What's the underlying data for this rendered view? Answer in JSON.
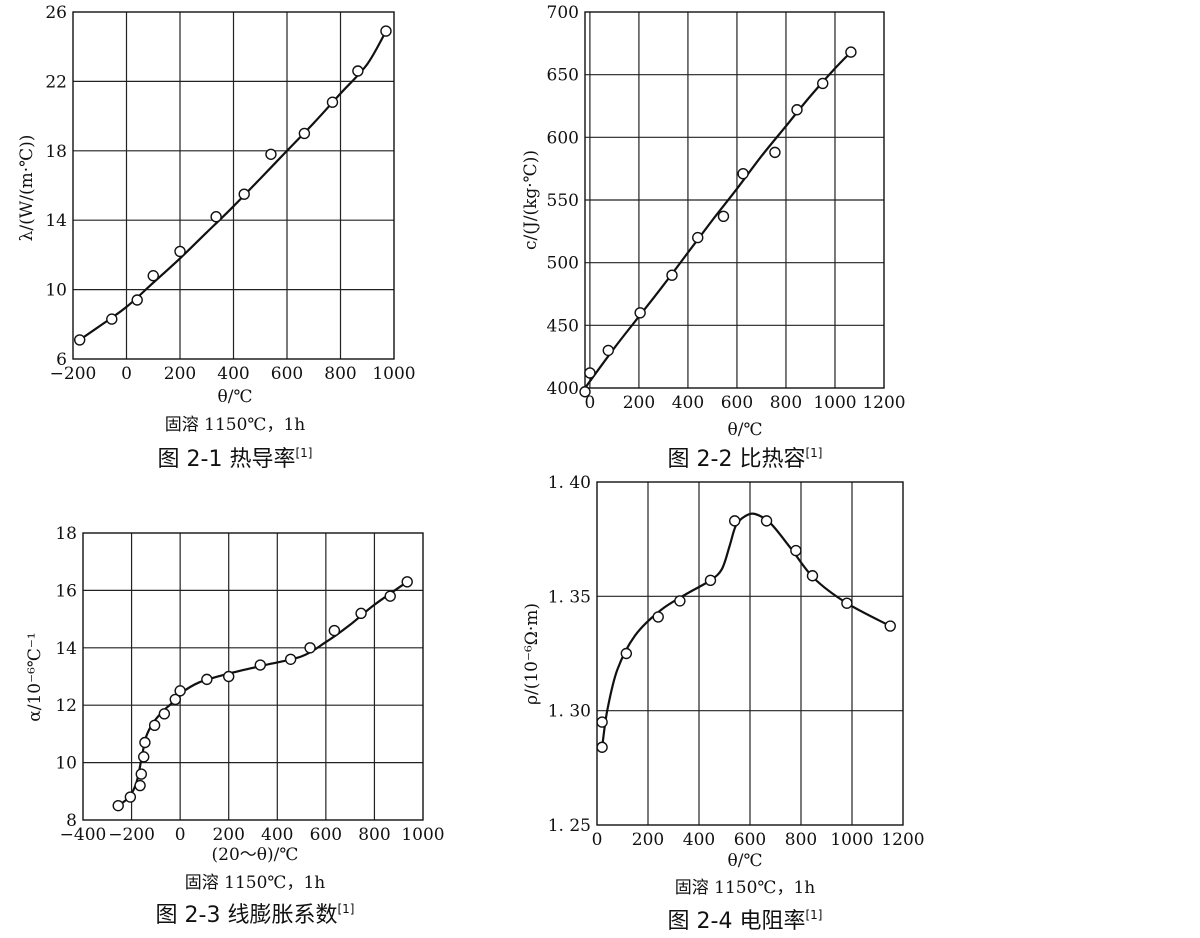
{
  "chart_data": [
    {
      "type": "line",
      "ylabel": "λ/(W/(m·℃))",
      "xlabel": "θ/℃",
      "note": "固溶 1150℃，1h",
      "caption": "图 2-1 热导率",
      "ref": "[1]",
      "xlim": [
        -200,
        1000
      ],
      "ylim": [
        6,
        26
      ],
      "xticks": [
        -200,
        0,
        200,
        400,
        600,
        800,
        1000
      ],
      "xtick_labels": [
        "−200",
        "0",
        "200",
        "400",
        "600",
        "800",
        "1000"
      ],
      "yticks": [
        6,
        10,
        14,
        18,
        22,
        26
      ],
      "ytick_labels": [
        "6",
        "10",
        "14",
        "18",
        "22",
        "26"
      ],
      "grid": true,
      "x": [
        -175,
        -55,
        40,
        100,
        200,
        335,
        440,
        540,
        665,
        770,
        865,
        970
      ],
      "y": [
        7.1,
        8.3,
        9.4,
        10.8,
        12.2,
        14.2,
        15.5,
        17.8,
        19.0,
        20.8,
        22.6,
        24.9
      ],
      "curve_x": [
        -175,
        -100,
        0,
        100,
        200,
        300,
        400,
        500,
        600,
        700,
        800,
        900,
        970
      ],
      "curve_y": [
        7.1,
        7.9,
        9.0,
        10.4,
        11.8,
        13.3,
        14.8,
        16.4,
        18.0,
        19.6,
        21.3,
        23.0,
        24.9
      ]
    },
    {
      "type": "line",
      "ylabel": "c/(J/(kg·℃))",
      "xlabel": "θ/℃",
      "note": "",
      "caption": "图 2-2 比热容",
      "ref": "[1]",
      "xlim": [
        -20,
        1200
      ],
      "ylim": [
        400,
        700
      ],
      "xticks": [
        0,
        200,
        400,
        600,
        800,
        1000,
        1200
      ],
      "xtick_labels": [
        "0",
        "200",
        "400",
        "600",
        "800",
        "1000",
        "1200"
      ],
      "yticks": [
        400,
        450,
        500,
        550,
        600,
        650,
        700
      ],
      "ytick_labels": [
        "400",
        "450",
        "500",
        "550",
        "600",
        "650",
        "700"
      ],
      "grid": true,
      "x": [
        -20,
        0,
        75,
        205,
        335,
        440,
        545,
        625,
        755,
        845,
        950,
        1065
      ],
      "y": [
        397,
        412,
        430,
        460,
        490,
        520,
        537,
        571,
        588,
        622,
        643,
        668
      ],
      "curve_x": [
        -20,
        100,
        200,
        300,
        400,
        500,
        600,
        700,
        800,
        900,
        1000,
        1065
      ],
      "curve_y": [
        400,
        432,
        457,
        482,
        508,
        534,
        559,
        585,
        609,
        633,
        655,
        668
      ]
    },
    {
      "type": "line",
      "ylabel": "α/10⁻⁶℃⁻¹",
      "xlabel": "(20～θ)/℃",
      "note": "固溶 1150℃，1h",
      "caption": "图 2-3 线膨胀系数",
      "ref": "[1]",
      "xlim": [
        -400,
        1000
      ],
      "ylim": [
        8,
        18
      ],
      "xticks": [
        -400,
        -200,
        0,
        200,
        400,
        600,
        800,
        1000
      ],
      "xtick_labels": [
        "−400",
        "−200",
        "0",
        "200",
        "400",
        "600",
        "800",
        "1000"
      ],
      "yticks": [
        8,
        10,
        12,
        14,
        16,
        18
      ],
      "ytick_labels": [
        "8",
        "10",
        "12",
        "14",
        "16",
        "18"
      ],
      "grid": true,
      "x": [
        -255,
        -205,
        -165,
        -160,
        -150,
        -145,
        -105,
        -65,
        -20,
        0,
        110,
        200,
        330,
        455,
        535,
        635,
        745,
        865,
        935
      ],
      "y": [
        8.5,
        8.8,
        9.2,
        9.6,
        10.2,
        10.7,
        11.3,
        11.7,
        12.2,
        12.5,
        12.9,
        13.0,
        13.4,
        13.6,
        14.0,
        14.6,
        15.2,
        15.8,
        16.3
      ],
      "curve_x": [
        -255,
        -210,
        -180,
        -160,
        -140,
        -110,
        -70,
        -30,
        0,
        80,
        200,
        350,
        500,
        600,
        700,
        800,
        935
      ],
      "curve_y": [
        8.5,
        8.8,
        9.3,
        10.1,
        10.9,
        11.4,
        11.8,
        12.1,
        12.4,
        12.8,
        13.1,
        13.4,
        13.7,
        14.2,
        14.8,
        15.5,
        16.3
      ]
    },
    {
      "type": "line",
      "ylabel": "ρ/(10⁻⁶Ω·m)",
      "xlabel": "θ/℃",
      "note": "固溶 1150℃，1h",
      "caption": "图 2-4 电阻率",
      "ref": "[1]",
      "xlim": [
        0,
        1200
      ],
      "ylim": [
        1.25,
        1.4
      ],
      "xticks": [
        0,
        200,
        400,
        600,
        800,
        1000,
        1200
      ],
      "xtick_labels": [
        "0",
        "200",
        "400",
        "600",
        "800",
        "1000",
        "1200"
      ],
      "yticks": [
        1.25,
        1.3,
        1.35,
        1.4
      ],
      "ytick_labels": [
        "1. 25",
        "1. 30",
        "1. 35",
        "1. 40"
      ],
      "grid": true,
      "x": [
        20,
        20,
        115,
        240,
        325,
        445,
        540,
        665,
        780,
        845,
        980,
        1150
      ],
      "y": [
        1.284,
        1.295,
        1.325,
        1.341,
        1.348,
        1.357,
        1.383,
        1.383,
        1.37,
        1.359,
        1.347,
        1.337
      ],
      "curve_x": [
        20,
        40,
        80,
        150,
        250,
        350,
        445,
        490,
        520,
        545,
        580,
        620,
        680,
        760,
        850,
        980,
        1150
      ],
      "curve_y": [
        1.284,
        1.3,
        1.318,
        1.333,
        1.344,
        1.351,
        1.357,
        1.362,
        1.372,
        1.381,
        1.385,
        1.386,
        1.382,
        1.371,
        1.358,
        1.347,
        1.337
      ]
    }
  ]
}
